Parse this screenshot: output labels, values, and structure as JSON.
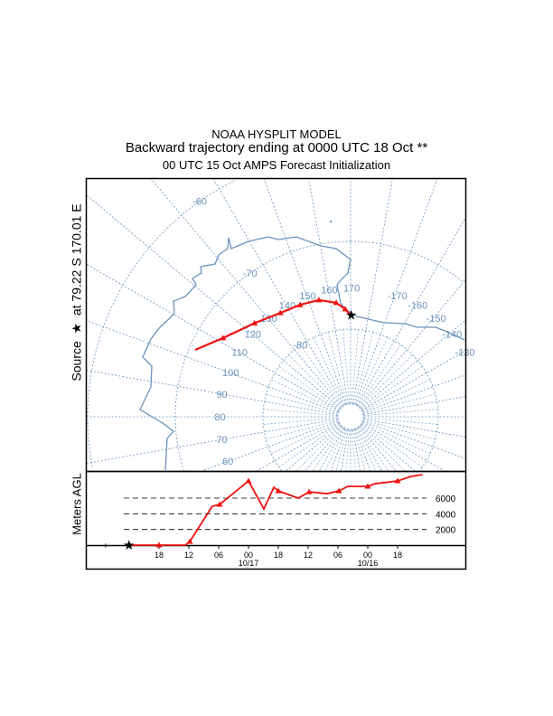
{
  "title": {
    "line1": "NOAA HYSPLIT MODEL",
    "line2": "Backward trajectory ending at 0000 UTC 18 Oct **",
    "line3": "00 UTC 15 Oct    AMPS  Forecast Initialization"
  },
  "source_label": {
    "prefix": "Source",
    "star": "★",
    "text": "at   79.22 S  170.01 E"
  },
  "height_axis_label": "Meters AGL",
  "colors": {
    "trajectory": "#ee1111",
    "map": "#6a93bd",
    "frame": "#000000"
  },
  "chart_data": [
    {
      "type": "line",
      "name": "trajectory-map",
      "projection": "polar-stereographic (south pole)",
      "source": {
        "lat": -79.22,
        "lon": 170.01
      },
      "lat_rings": [
        -80,
        -70,
        -60
      ],
      "lat_labels": [
        "-80",
        "-70",
        "-60"
      ],
      "lon_labels": [
        "60",
        "70",
        "80",
        "90",
        "100",
        "110",
        "120",
        "130",
        "140",
        "150",
        "160",
        "170",
        "-170",
        "-160",
        "-150",
        "-140",
        "-130"
      ],
      "trajectory": [
        {
          "lat": -70.7,
          "lon": 103.3
        },
        {
          "lat": -72.9,
          "lon": 111.7
        },
        {
          "lat": -74.7,
          "lon": 124.2
        },
        {
          "lat": -75.7,
          "lon": 135.9
        },
        {
          "lat": -76.0,
          "lon": 145.7
        },
        {
          "lat": -76.2,
          "lon": 154.8
        },
        {
          "lat": -76.9,
          "lon": 162.8
        },
        {
          "lat": -77.7,
          "lon": 167.1
        },
        {
          "lat": -78.4,
          "lon": 170.0
        }
      ]
    },
    {
      "type": "line",
      "name": "trajectory-height",
      "xlabel": "",
      "ylabel": "Meters AGL",
      "x_units": "hours relative to 0000 UTC 18 Oct",
      "ylim": [
        0,
        9000
      ],
      "y_ticks": [
        2000,
        4000,
        6000
      ],
      "y_tick_labels": [
        "2000",
        "4000",
        "6000"
      ],
      "x_tick_hours": [
        -6,
        -12,
        -18,
        -24,
        -30,
        -36,
        -42,
        -48,
        -54
      ],
      "x_tick_labels": [
        "18",
        "12",
        "06",
        "00",
        "18",
        "12",
        "06",
        "00",
        "18"
      ],
      "date_labels": [
        {
          "hour": -24,
          "text": "10/17"
        },
        {
          "hour": -48,
          "text": "10/16"
        }
      ],
      "points": [
        {
          "h": 0,
          "m": 0
        },
        {
          "h": -6,
          "m": 0
        },
        {
          "h": -11.3,
          "m": 0
        },
        {
          "h": -12.2,
          "m": 460
        },
        {
          "h": -16.7,
          "m": 4960
        },
        {
          "h": -18.2,
          "m": 5190
        },
        {
          "h": -24,
          "m": 8190
        },
        {
          "h": -27.1,
          "m": 4610
        },
        {
          "h": -29.1,
          "m": 7380
        },
        {
          "h": -30,
          "m": 6920
        },
        {
          "h": -34,
          "m": 6000
        },
        {
          "h": -36.2,
          "m": 6800
        },
        {
          "h": -39.8,
          "m": 6570
        },
        {
          "h": -42.2,
          "m": 6920
        },
        {
          "h": -44,
          "m": 7500
        },
        {
          "h": -48,
          "m": 7500
        },
        {
          "h": -49.5,
          "m": 7840
        },
        {
          "h": -54,
          "m": 8190
        },
        {
          "h": -56.7,
          "m": 8770
        },
        {
          "h": -59,
          "m": 9000
        }
      ]
    }
  ]
}
